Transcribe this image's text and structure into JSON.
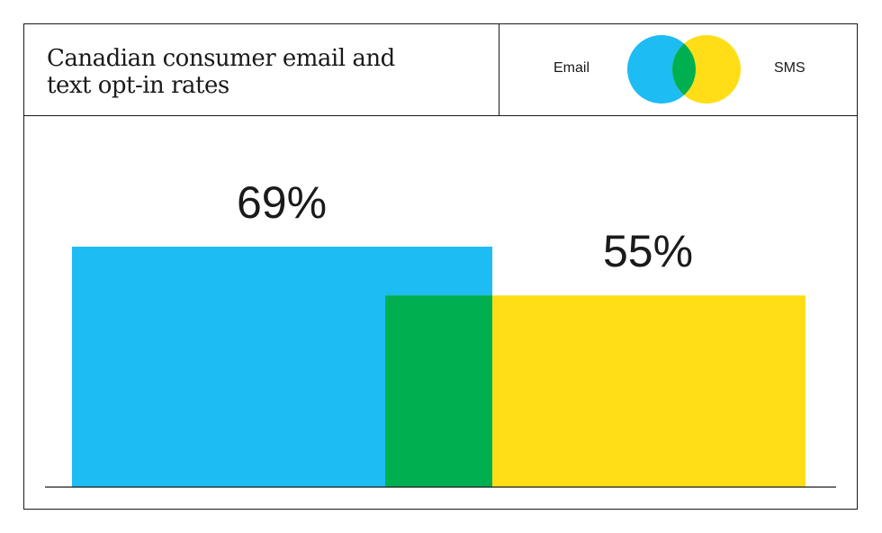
{
  "chart_data": {
    "type": "bar",
    "title": "Canadian consumer email and text opt-in rates",
    "categories": [
      "Email",
      "SMS"
    ],
    "values": [
      69,
      55
    ],
    "value_labels": [
      "69%",
      "55%"
    ],
    "ylim": [
      0,
      100
    ],
    "grid": false,
    "legend": {
      "placement": "top-right",
      "entries": [
        "Email",
        "SMS"
      ],
      "style": "venn"
    },
    "colors": {
      "Email": "#1DBCF3",
      "SMS": "#FFDE17",
      "overlap": "#00B050"
    }
  }
}
